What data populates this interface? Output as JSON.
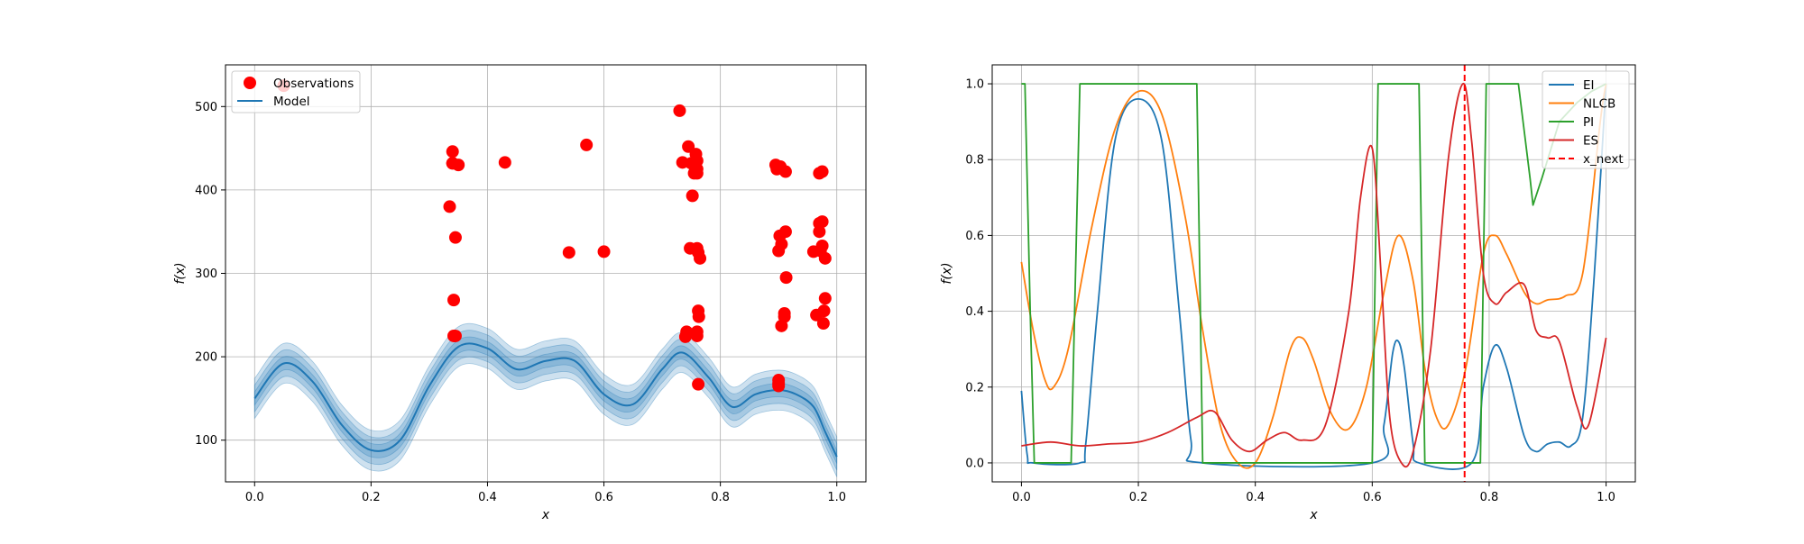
{
  "chart_data": [
    {
      "type": "scatter",
      "xlabel": "x",
      "ylabel": "f(x)",
      "xlim": [
        -0.05,
        1.05
      ],
      "ylim": [
        50,
        550
      ],
      "xticks": [
        0.0,
        0.2,
        0.4,
        0.6,
        0.8,
        1.0
      ],
      "xtick_labels": [
        "0.0",
        "0.2",
        "0.4",
        "0.6",
        "0.8",
        "1.0"
      ],
      "yticks": [
        100,
        200,
        300,
        400,
        500
      ],
      "ytick_labels": [
        "100",
        "200",
        "300",
        "400",
        "500"
      ],
      "grid": true,
      "legend_position": "upper-left",
      "legend": [
        "Observations",
        "Model"
      ],
      "colors": {
        "observations": "#ff0000",
        "model": "#1f77b4"
      },
      "observations": {
        "name": "Observations",
        "x": [
          0.05,
          0.335,
          0.34,
          0.34,
          0.345,
          0.342,
          0.345,
          0.35,
          0.34,
          0.342,
          0.43,
          0.54,
          0.57,
          0.6,
          0.73,
          0.735,
          0.74,
          0.742,
          0.745,
          0.748,
          0.75,
          0.752,
          0.755,
          0.757,
          0.758,
          0.76,
          0.76,
          0.762,
          0.762,
          0.763,
          0.765,
          0.76,
          0.76,
          0.762,
          0.758,
          0.76,
          0.76,
          0.895,
          0.897,
          0.9,
          0.902,
          0.903,
          0.905,
          0.905,
          0.91,
          0.91,
          0.912,
          0.912,
          0.913,
          0.9,
          0.9,
          0.9,
          0.96,
          0.965,
          0.97,
          0.97,
          0.972,
          0.975,
          0.975,
          0.977,
          0.978,
          0.98,
          0.97,
          0.975,
          0.98
        ],
        "y": [
          525,
          380,
          432,
          446,
          343,
          268,
          225,
          430,
          432,
          225,
          433,
          325,
          454,
          326,
          495,
          433,
          224,
          230,
          452,
          330,
          432,
          393,
          420,
          433,
          443,
          425,
          330,
          325,
          255,
          248,
          318,
          230,
          225,
          167,
          227,
          420,
          435,
          430,
          425,
          327,
          345,
          428,
          335,
          237,
          248,
          252,
          422,
          350,
          295,
          168,
          172,
          165,
          326,
          250,
          360,
          350,
          327,
          333,
          362,
          240,
          255,
          318,
          420,
          422,
          270
        ]
      },
      "series": [
        {
          "name": "Model",
          "x": [
            0.0,
            0.05,
            0.1,
            0.15,
            0.2,
            0.25,
            0.3,
            0.35,
            0.4,
            0.45,
            0.5,
            0.55,
            0.6,
            0.65,
            0.7,
            0.735,
            0.78,
            0.82,
            0.86,
            0.9,
            0.93,
            0.96,
            0.98,
            1.0
          ],
          "y": [
            150,
            192,
            170,
            118,
            88,
            100,
            165,
            212,
            210,
            185,
            195,
            195,
            155,
            143,
            185,
            205,
            175,
            140,
            155,
            160,
            155,
            140,
            110,
            80
          ],
          "band_widths": [
            8,
            16,
            24
          ]
        }
      ]
    },
    {
      "type": "line",
      "xlabel": "x",
      "ylabel": "f(x)",
      "xlim": [
        -0.05,
        1.05
      ],
      "ylim": [
        -0.05,
        1.05
      ],
      "xticks": [
        0.0,
        0.2,
        0.4,
        0.6,
        0.8,
        1.0
      ],
      "xtick_labels": [
        "0.0",
        "0.2",
        "0.4",
        "0.6",
        "0.8",
        "1.0"
      ],
      "yticks": [
        0.0,
        0.2,
        0.4,
        0.6,
        0.8,
        1.0
      ],
      "ytick_labels": [
        "0.0",
        "0.2",
        "0.4",
        "0.6",
        "0.8",
        "1.0"
      ],
      "grid": true,
      "legend_position": "upper-right",
      "legend": [
        "EI",
        "NLCB",
        "PI",
        "ES",
        "x_next"
      ],
      "series": [
        {
          "name": "EI",
          "color": "#1f77b4",
          "x": [
            0.0,
            0.01,
            0.02,
            0.1,
            0.11,
            0.13,
            0.16,
            0.2,
            0.24,
            0.27,
            0.29,
            0.31,
            0.6,
            0.62,
            0.635,
            0.645,
            0.655,
            0.67,
            0.68,
            0.77,
            0.79,
            0.81,
            0.83,
            0.86,
            0.88,
            0.9,
            0.92,
            0.94,
            0.96,
            0.98,
            1.0
          ],
          "y": [
            0.19,
            0.02,
            0.0,
            0.0,
            0.05,
            0.4,
            0.85,
            0.96,
            0.85,
            0.4,
            0.06,
            0.0,
            0.0,
            0.1,
            0.29,
            0.32,
            0.25,
            0.05,
            0.0,
            0.0,
            0.2,
            0.31,
            0.25,
            0.07,
            0.03,
            0.05,
            0.055,
            0.045,
            0.12,
            0.5,
            1.0
          ]
        },
        {
          "name": "NLCB",
          "color": "#ff7f0e",
          "x": [
            0.0,
            0.02,
            0.04,
            0.055,
            0.08,
            0.12,
            0.16,
            0.2,
            0.24,
            0.28,
            0.31,
            0.34,
            0.37,
            0.4,
            0.43,
            0.46,
            0.48,
            0.5,
            0.53,
            0.56,
            0.59,
            0.62,
            0.645,
            0.67,
            0.69,
            0.71,
            0.73,
            0.76,
            0.79,
            0.81,
            0.83,
            0.86,
            0.88,
            0.9,
            0.93,
            0.96,
            0.99,
            1.0
          ],
          "y": [
            0.53,
            0.35,
            0.22,
            0.2,
            0.3,
            0.62,
            0.88,
            0.98,
            0.92,
            0.65,
            0.35,
            0.1,
            0.0,
            0.0,
            0.12,
            0.3,
            0.33,
            0.27,
            0.13,
            0.09,
            0.2,
            0.45,
            0.6,
            0.48,
            0.25,
            0.12,
            0.1,
            0.25,
            0.55,
            0.6,
            0.55,
            0.45,
            0.42,
            0.43,
            0.44,
            0.5,
            0.9,
            1.0
          ]
        },
        {
          "name": "PI",
          "color": "#2ca02c",
          "x": [
            0.0,
            0.006,
            0.015,
            0.022,
            0.085,
            0.1,
            0.3,
            0.31,
            0.6,
            0.61,
            0.68,
            0.69,
            0.785,
            0.795,
            0.85,
            0.87,
            0.875,
            0.89,
            0.92,
            0.95,
            0.975,
            1.0
          ],
          "y": [
            1.0,
            1.0,
            0.4,
            0.0,
            0.0,
            1.0,
            1.0,
            0.0,
            0.0,
            1.0,
            1.0,
            0.0,
            0.0,
            1.0,
            1.0,
            0.75,
            0.68,
            0.75,
            0.9,
            0.95,
            0.98,
            1.0
          ],
          "x_note": "PI returns to 1.0 near x=0.78 and dips to ~0.68 near x=0.875"
        },
        {
          "name": "ES",
          "color": "#d62728",
          "x": [
            0.0,
            0.05,
            0.1,
            0.15,
            0.2,
            0.25,
            0.3,
            0.33,
            0.36,
            0.39,
            0.42,
            0.45,
            0.48,
            0.52,
            0.56,
            0.58,
            0.6,
            0.615,
            0.63,
            0.65,
            0.67,
            0.7,
            0.73,
            0.755,
            0.77,
            0.79,
            0.81,
            0.83,
            0.86,
            0.88,
            0.9,
            0.92,
            0.95,
            0.97,
            1.0
          ],
          "y": [
            0.045,
            0.055,
            0.045,
            0.05,
            0.055,
            0.08,
            0.12,
            0.135,
            0.06,
            0.03,
            0.06,
            0.08,
            0.06,
            0.1,
            0.4,
            0.7,
            0.83,
            0.5,
            0.12,
            0.0,
            0.03,
            0.3,
            0.8,
            1.0,
            0.85,
            0.5,
            0.42,
            0.45,
            0.47,
            0.35,
            0.33,
            0.32,
            0.15,
            0.1,
            0.33
          ]
        },
        {
          "name": "x_next",
          "color": "#ff0000",
          "style": "dashed",
          "x_value": 0.758
        }
      ]
    }
  ]
}
